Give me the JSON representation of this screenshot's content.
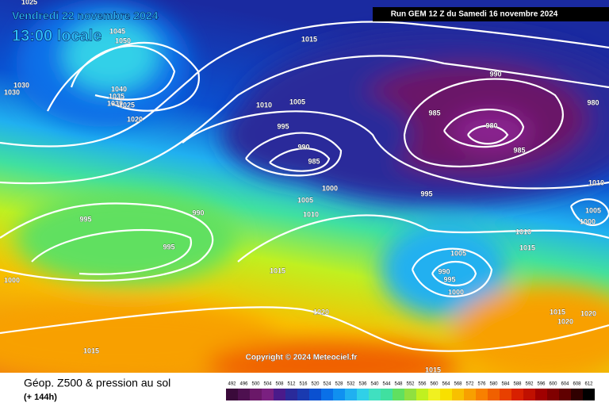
{
  "header": {
    "date": "Vendredi 22 novembre 2024",
    "time": "13:00 locale",
    "run": "Run GEM 12 Z du Samedi 16 novembre 2024",
    "copyright": "Copyright © 2024 Meteociel.fr"
  },
  "legend": {
    "title": "Géop. Z500 & pression au sol",
    "lead": "(+ 144h)",
    "levels": [
      492,
      496,
      500,
      504,
      508,
      512,
      516,
      520,
      524,
      528,
      532,
      536,
      540,
      544,
      548,
      552,
      556,
      560,
      564,
      568,
      572,
      576,
      580,
      584,
      588,
      592,
      596,
      600,
      604,
      608,
      612
    ]
  },
  "isobar_labels": [
    1025,
    1045,
    1050,
    1030,
    1030,
    1040,
    1035,
    1030,
    1025,
    1020,
    1015,
    1005,
    1010,
    995,
    990,
    985,
    990,
    985,
    980,
    985,
    980,
    995,
    1000,
    1005,
    1010,
    1010,
    1005,
    1000,
    990,
    995,
    995,
    1000,
    1015,
    1010,
    1015,
    1005,
    990,
    995,
    1000,
    1020,
    1015,
    1020,
    1020,
    1015,
    1015
  ]
}
